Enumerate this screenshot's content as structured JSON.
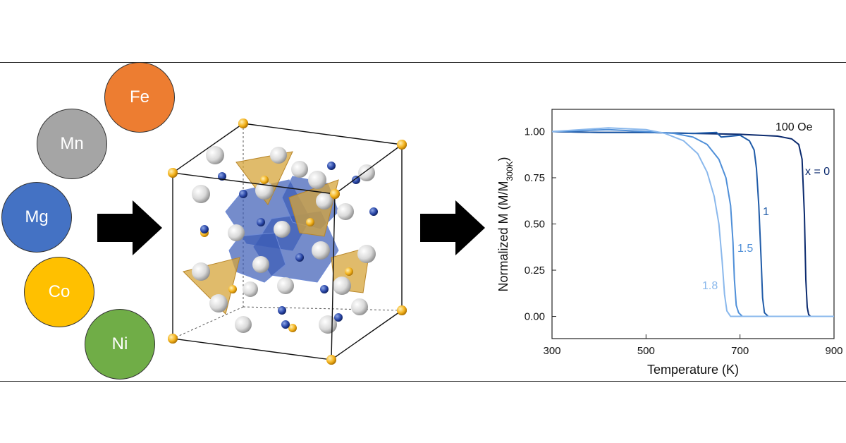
{
  "elements": [
    {
      "symbol": "Fe",
      "color": "#ED7D31"
    },
    {
      "symbol": "Mn",
      "color": "#A5A5A5"
    },
    {
      "symbol": "Mg",
      "color": "#4472C4"
    },
    {
      "symbol": "Co",
      "color": "#FFC000"
    },
    {
      "symbol": "Ni",
      "color": "#70AD47"
    }
  ],
  "chart_data": {
    "type": "line",
    "xlabel": "Temperature (K)",
    "ylabel_main": "Normalized M (M/M",
    "ylabel_sub": "300K",
    "ylabel_end": ")",
    "xlim": [
      300,
      900
    ],
    "ylim": [
      -0.12,
      1.12
    ],
    "xticks": [
      300,
      500,
      700,
      900
    ],
    "yticks": [
      "0.00",
      "0.25",
      "0.50",
      "0.75",
      "1.00"
    ],
    "annotation": "100 Oe",
    "series": [
      {
        "name": "x = 0",
        "color": "#0B2A6E",
        "x": [
          300,
          400,
          500,
          600,
          700,
          780,
          810,
          825,
          832,
          837,
          840,
          843,
          846,
          850,
          900
        ],
        "y": [
          1.0,
          0.995,
          0.995,
          0.99,
          0.985,
          0.975,
          0.96,
          0.93,
          0.85,
          0.55,
          0.2,
          0.05,
          0.01,
          0.0,
          0.0
        ]
      },
      {
        "name": "1",
        "color": "#1F5BA8",
        "x": [
          300,
          400,
          500,
          600,
          650,
          660,
          700,
          720,
          730,
          735,
          740,
          745,
          748,
          752,
          760,
          900
        ],
        "y": [
          1.0,
          0.995,
          0.995,
          0.99,
          0.995,
          0.97,
          0.98,
          0.95,
          0.9,
          0.8,
          0.6,
          0.3,
          0.1,
          0.02,
          0.0,
          0.0
        ]
      },
      {
        "name": "1.5",
        "color": "#4F8FD8",
        "x": [
          300,
          420,
          500,
          560,
          600,
          630,
          655,
          670,
          680,
          685,
          688,
          692,
          697,
          705,
          720,
          900
        ],
        "y": [
          1.0,
          1.01,
          1.0,
          0.99,
          0.97,
          0.93,
          0.85,
          0.75,
          0.6,
          0.4,
          0.2,
          0.06,
          0.02,
          0.0,
          0.0,
          0.0
        ]
      },
      {
        "name": "1.8",
        "color": "#8AB8EC",
        "x": [
          300,
          420,
          500,
          540,
          580,
          610,
          630,
          645,
          655,
          662,
          667,
          672,
          680,
          700,
          900
        ],
        "y": [
          1.0,
          1.02,
          1.01,
          0.99,
          0.95,
          0.88,
          0.78,
          0.65,
          0.5,
          0.3,
          0.12,
          0.03,
          0.0,
          0.0,
          0.0
        ]
      }
    ]
  }
}
